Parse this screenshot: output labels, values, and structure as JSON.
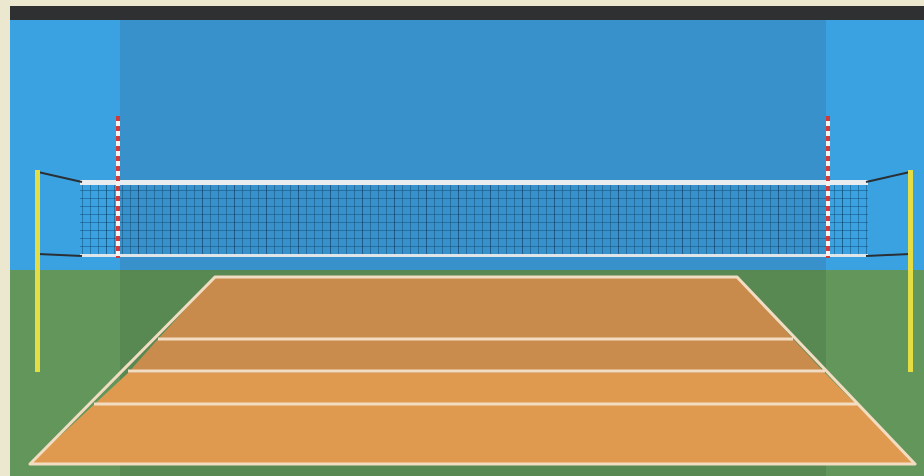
{
  "scene": {
    "name": "volleyball-court",
    "colors": {
      "frame": "#ece8cf",
      "top_bar": "#2f3032",
      "wall": "#3aa2e0",
      "wall_shaded": "#3891cb",
      "floor": "#62965a",
      "floor_shaded": "#598953",
      "court_far": "#c98b4c",
      "court_near": "#e09a50",
      "court_lines": "#f2ddc2",
      "net_mesh": "#0f4a76",
      "net_band": "#e9edf0",
      "antenna_red": "#d23a3a",
      "antenna_white": "#f5f5f5",
      "post": "#e5dd44"
    }
  }
}
